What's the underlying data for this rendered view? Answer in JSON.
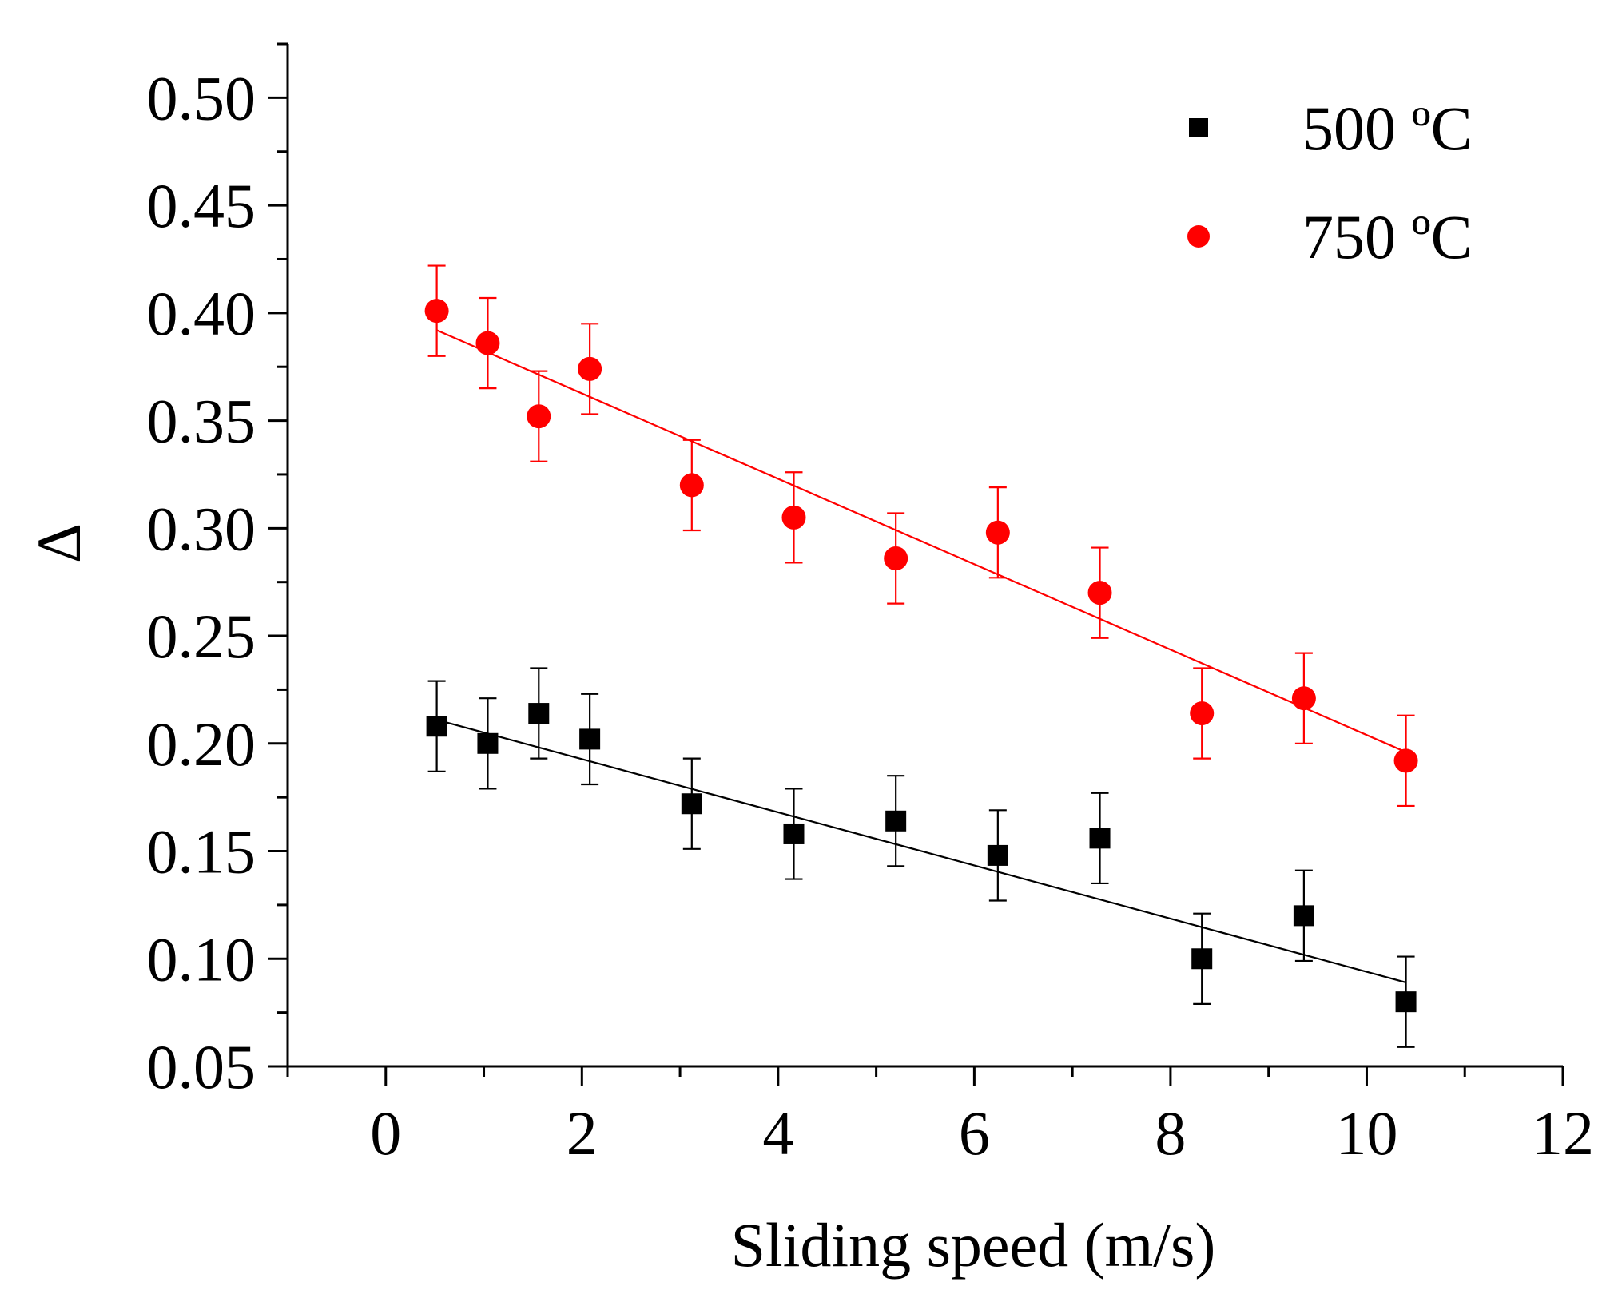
{
  "chart_data": {
    "type": "scatter",
    "title": "",
    "xlabel": "Sliding speed (m/s)",
    "ylabel": "Δ",
    "xlim": [
      -1,
      12
    ],
    "ylim": [
      0.05,
      0.525
    ],
    "xticks": [
      0,
      2,
      4,
      6,
      8,
      10,
      12
    ],
    "xtick_labels": [
      "0",
      "2",
      "4",
      "6",
      "8",
      "10",
      "12"
    ],
    "yticks": [
      0.05,
      0.1,
      0.15,
      0.2,
      0.25,
      0.3,
      0.35,
      0.4,
      0.45,
      0.5
    ],
    "ytick_labels": [
      "0.05",
      "0.10",
      "0.15",
      "0.20",
      "0.25",
      "0.30",
      "0.35",
      "0.40",
      "0.45",
      "0.50"
    ],
    "grid": false,
    "legend_position": "top-right",
    "series": [
      {
        "name": "500 ºC",
        "marker": "square",
        "color": "#000000",
        "x": [
          0.52,
          1.04,
          1.56,
          2.08,
          3.12,
          4.16,
          5.2,
          6.24,
          7.28,
          8.32,
          9.36,
          10.4
        ],
        "y": [
          0.208,
          0.2,
          0.214,
          0.202,
          0.172,
          0.158,
          0.164,
          0.148,
          0.156,
          0.1,
          0.12,
          0.08
        ],
        "error": [
          0.021,
          0.021,
          0.021,
          0.021,
          0.021,
          0.021,
          0.021,
          0.021,
          0.021,
          0.021,
          0.021,
          0.021
        ],
        "fit": {
          "x": [
            0.52,
            10.4
          ],
          "y": [
            0.211,
            0.089
          ]
        }
      },
      {
        "name": "750 ºC",
        "marker": "circle",
        "color": "#ff0000",
        "x": [
          0.52,
          1.04,
          1.56,
          2.08,
          3.12,
          4.16,
          5.2,
          6.24,
          7.28,
          8.32,
          9.36,
          10.4
        ],
        "y": [
          0.401,
          0.386,
          0.352,
          0.374,
          0.32,
          0.305,
          0.286,
          0.298,
          0.27,
          0.214,
          0.221,
          0.192
        ],
        "error": [
          0.021,
          0.021,
          0.021,
          0.021,
          0.021,
          0.021,
          0.021,
          0.021,
          0.021,
          0.021,
          0.021,
          0.021
        ],
        "fit": {
          "x": [
            0.52,
            10.4
          ],
          "y": [
            0.392,
            0.196
          ]
        }
      }
    ]
  }
}
